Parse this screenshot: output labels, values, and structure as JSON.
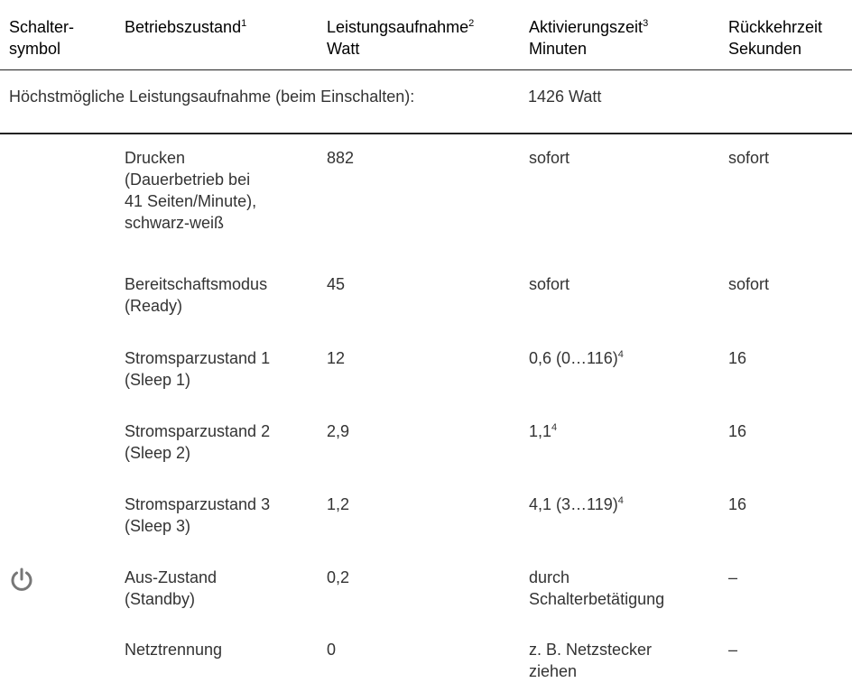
{
  "header": {
    "cells": [
      {
        "lines": [
          "Schalter-",
          "symbol"
        ]
      },
      {
        "lines": [
          "Betriebszustand"
        ],
        "sup": "1"
      },
      {
        "lines": [
          "Leistungsaufnahme",
          "Watt"
        ],
        "sup": "2"
      },
      {
        "lines": [
          "Aktivierungszeit",
          "Minuten"
        ],
        "sup": "3"
      },
      {
        "lines": [
          "Rückkehrzeit",
          "Sekunden"
        ]
      }
    ]
  },
  "note": {
    "label": "Höchstmögliche Leistungsaufnahme (beim Einschalten):",
    "value": "1426 Watt"
  },
  "rows": [
    {
      "state": [
        "Drucken",
        "(Dauerbetrieb bei",
        "41 Seiten/Minute),",
        "schwarz-weiß"
      ],
      "power": "882",
      "activation": {
        "lines": [
          "sofort"
        ]
      },
      "return": "sofort"
    },
    {
      "state": [
        "Bereitschaftsmodus",
        "(Ready)"
      ],
      "power": "45",
      "activation": {
        "lines": [
          "sofort"
        ]
      },
      "return": "sofort"
    },
    {
      "state": [
        "Stromsparzustand 1",
        "(Sleep 1)"
      ],
      "power": "12",
      "activation": {
        "lines": [
          "0,6 (0…116)"
        ],
        "sup": "4"
      },
      "return": "16"
    },
    {
      "state": [
        "Stromsparzustand 2",
        "(Sleep 2)"
      ],
      "power": "2,9",
      "activation": {
        "lines": [
          "1,1"
        ],
        "sup": "4"
      },
      "return": "16"
    },
    {
      "state": [
        "Stromsparzustand 3",
        "(Sleep 3)"
      ],
      "power": "1,2",
      "activation": {
        "lines": [
          "4,1 (3…119)"
        ],
        "sup": "4"
      },
      "return": "16"
    },
    {
      "state": [
        "Aus-Zustand",
        "(Standby)"
      ],
      "power": "0,2",
      "activation": {
        "lines": [
          "durch",
          "Schalterbetätigung"
        ]
      },
      "return": "–"
    },
    {
      "state": [
        "Netztrennung"
      ],
      "power": "0",
      "activation": {
        "lines": [
          "z. B. Netzstecker",
          "ziehen"
        ]
      },
      "return": "–"
    }
  ]
}
